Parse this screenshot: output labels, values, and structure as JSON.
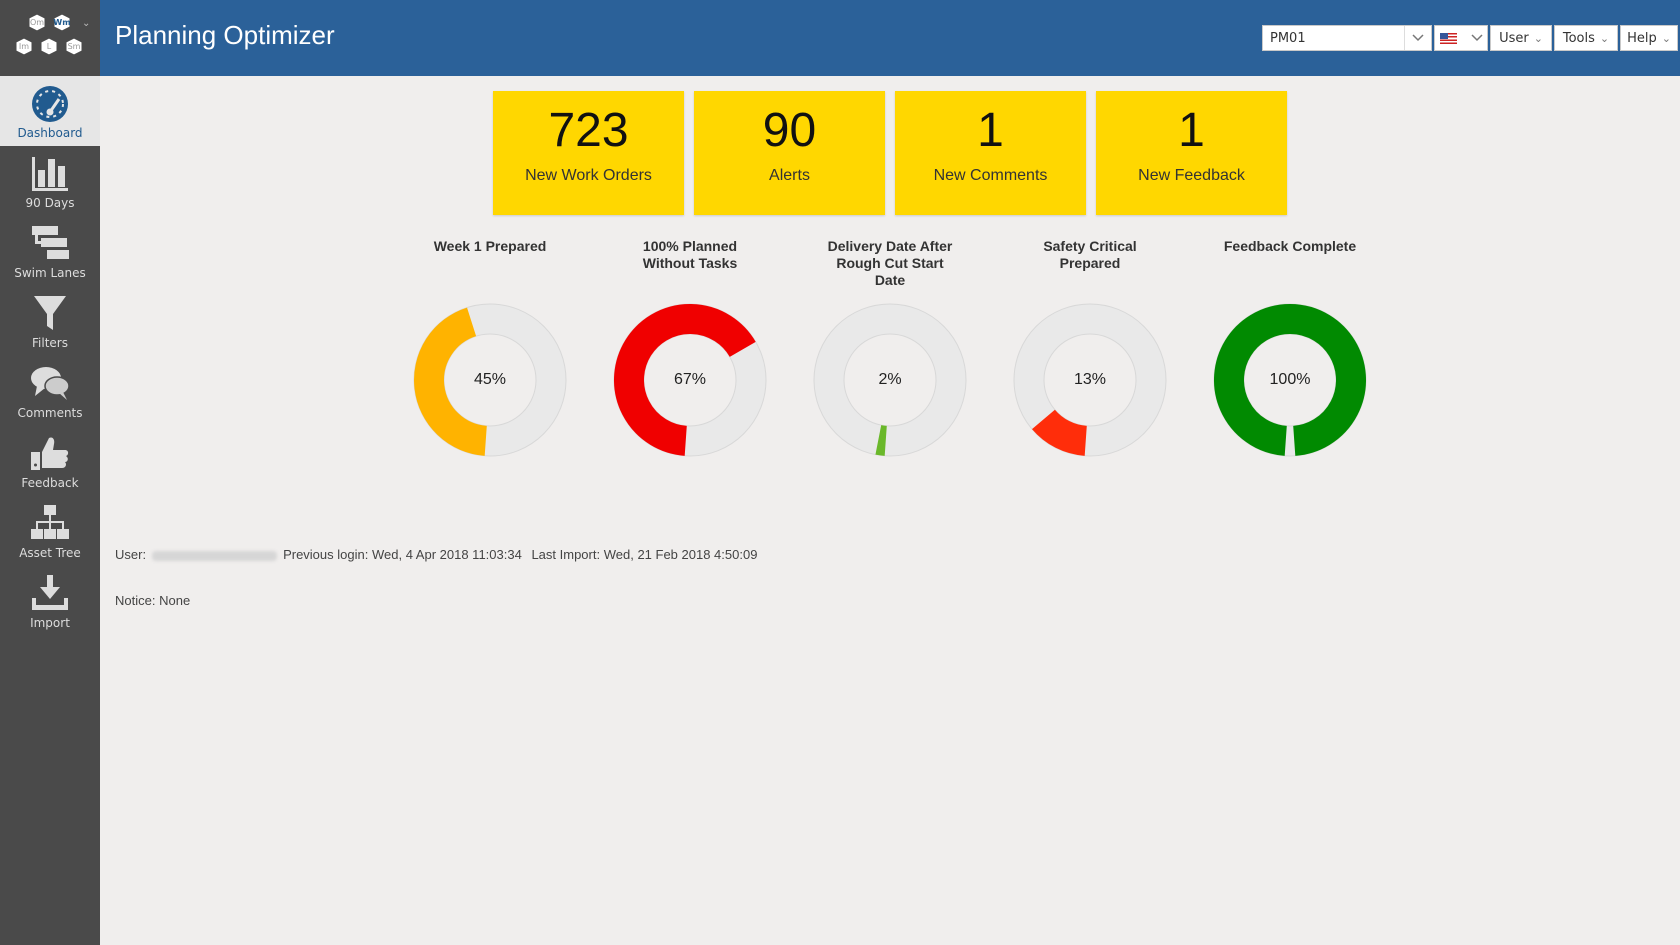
{
  "app": {
    "title": "Planning Optimizer",
    "logo_letters": [
      "Om",
      "Wm",
      "Im",
      "L",
      "Sm"
    ]
  },
  "topbar": {
    "plant_select": {
      "value": "PM01"
    },
    "language_select": {
      "icon": "us-flag-icon"
    },
    "menus": [
      "User",
      "Tools",
      "Help"
    ]
  },
  "sidebar": {
    "items": [
      {
        "label": "Dashboard",
        "icon": "dashboard-gauge-icon",
        "active": true
      },
      {
        "label": "90 Days",
        "icon": "bar-chart-icon"
      },
      {
        "label": "Swim Lanes",
        "icon": "swim-lanes-icon"
      },
      {
        "label": "Filters",
        "icon": "funnel-icon"
      },
      {
        "label": "Comments",
        "icon": "speech-bubbles-icon"
      },
      {
        "label": "Feedback",
        "icon": "thumbs-up-icon"
      },
      {
        "label": "Asset Tree",
        "icon": "hierarchy-icon"
      },
      {
        "label": "Import",
        "icon": "download-tray-icon"
      }
    ]
  },
  "tiles": [
    {
      "value": "723",
      "label": "New Work Orders"
    },
    {
      "value": "90",
      "label": "Alerts"
    },
    {
      "value": "1",
      "label": "New Comments"
    },
    {
      "value": "1",
      "label": "New Feedback"
    }
  ],
  "tile_color": "#ffd700",
  "gauges": [
    {
      "title_lines": [
        "Week 1 Prepared"
      ],
      "percent": 45,
      "label": "45%",
      "color": "#ffb300"
    },
    {
      "title_lines": [
        "100% Planned",
        "Without Tasks"
      ],
      "percent": 67,
      "label": "67%",
      "color": "#f00000"
    },
    {
      "title_lines": [
        "Delivery Date After",
        "Rough Cut Start",
        "Date"
      ],
      "percent": 2,
      "label": "2%",
      "color": "#6ab82a"
    },
    {
      "title_lines": [
        "Safety Critical",
        "Prepared"
      ],
      "percent": 13,
      "label": "13%",
      "color": "#ff2d0a"
    },
    {
      "title_lines": [
        "Feedback Complete"
      ],
      "percent": 100,
      "label": "100%",
      "color": "#018a01"
    }
  ],
  "footer": {
    "user_label": "User:",
    "previous_login_label": "Previous login:",
    "previous_login": "Wed, 4 Apr 2018 11:03:34",
    "last_import_label": "Last Import:",
    "last_import": "Wed, 21 Feb 2018 4:50:09",
    "notice_label": "Notice:",
    "notice": "None"
  }
}
